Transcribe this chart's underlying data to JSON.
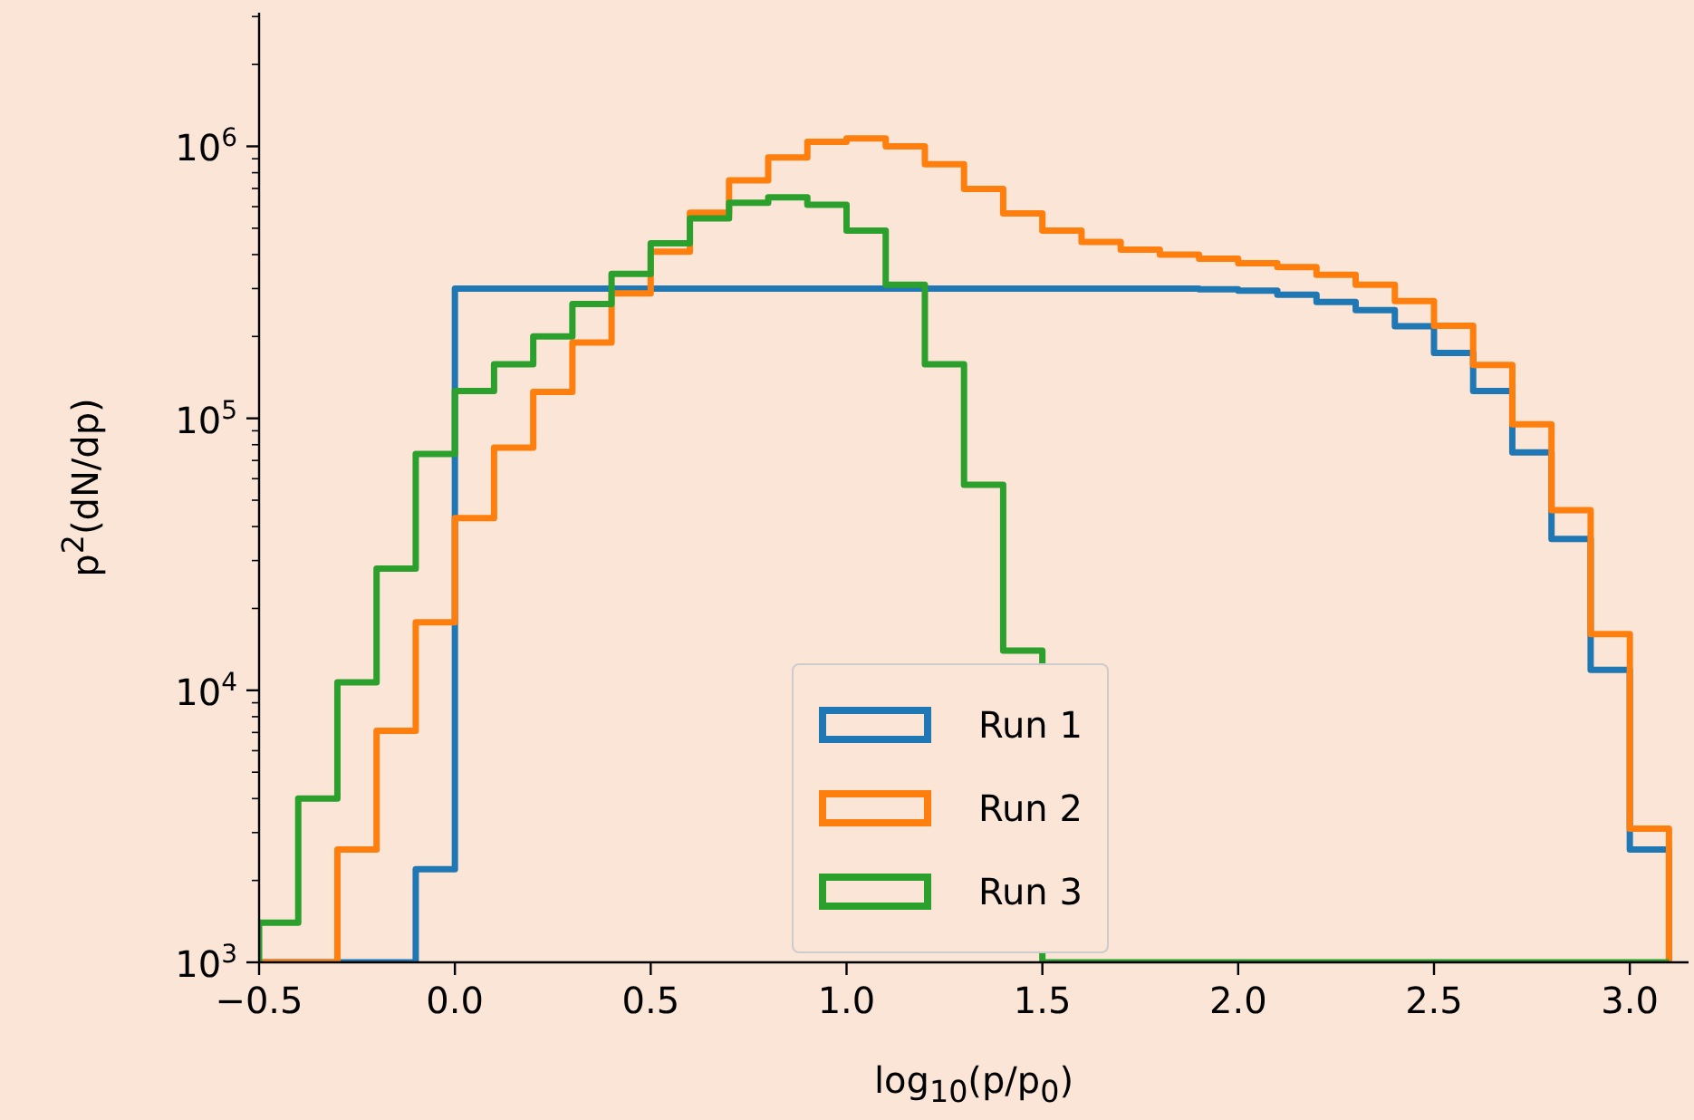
{
  "chart_data": {
    "type": "histogram",
    "xlabel": "log$_{10}$(p/p$_{0}$)",
    "ylabel": "p$^{2}$(dN/dp)",
    "log": "y",
    "legend": "bottom",
    "grid": false,
    "bins": [
      -0.5,
      -0.4,
      -0.3,
      -0.2,
      -0.1,
      0,
      0.1,
      0.2,
      0.3,
      0.4,
      0.5,
      0.6,
      0.7,
      0.8,
      0.9,
      1.0,
      1.1,
      1.2,
      1.3,
      1.4,
      1.5,
      1.6,
      1.7,
      1.8,
      1.9,
      2.0,
      2.1,
      2.2,
      2.3,
      2.4,
      2.5,
      2.6,
      2.7,
      2.8,
      2.9,
      3.0,
      3.1
    ],
    "series": [
      {
        "name": "Run 1",
        "color": "#1f77b4",
        "values": [
          null,
          null,
          null,
          null,
          2200,
          300000,
          300000,
          300000,
          300000,
          300000,
          300000,
          300000,
          300000,
          300000,
          300000,
          300000,
          300000,
          300000,
          300000,
          300000,
          300000,
          300000,
          300000,
          300000,
          298000,
          295000,
          285000,
          268000,
          250000,
          218000,
          174000,
          126000,
          75000,
          36000,
          11900,
          2600
        ]
      },
      {
        "name": "Run 2",
        "color": "#ff7f0e",
        "values": [
          null,
          null,
          2600,
          7100,
          17800,
          43000,
          78000,
          125000,
          190000,
          288000,
          410000,
          570000,
          750000,
          910000,
          1040000,
          1070000,
          1000000,
          860000,
          697000,
          567000,
          490000,
          445000,
          417000,
          400000,
          386000,
          372000,
          360000,
          337000,
          310000,
          270000,
          219000,
          157000,
          95000,
          46000,
          16100,
          3100
        ]
      },
      {
        "name": "Run 3",
        "color": "#2ca02c",
        "values": [
          1400,
          4000,
          10700,
          28000,
          74000,
          126000,
          158000,
          200000,
          263000,
          340000,
          440000,
          543000,
          620000,
          650000,
          610000,
          490000,
          310000,
          158000,
          57000,
          14000,
          null,
          null,
          null,
          null,
          null,
          null,
          null,
          null,
          null,
          null,
          null,
          null,
          null,
          null,
          null,
          null
        ]
      }
    ],
    "xlim": [
      -0.5,
      3.15
    ],
    "xticks": [
      {
        "value": -0.5,
        "label": "−0.5"
      },
      {
        "value": 0,
        "label": "0.0"
      },
      {
        "value": 0.5,
        "label": "0.5"
      },
      {
        "value": 1,
        "label": "1.0"
      },
      {
        "value": 1.5,
        "label": "1.5"
      },
      {
        "value": 2,
        "label": "2.0"
      },
      {
        "value": 2.5,
        "label": "2.5"
      },
      {
        "value": 3,
        "label": "3.0"
      }
    ],
    "ylim": [
      1000,
      3100000
    ],
    "yticks": [
      {
        "value": 1000,
        "label": "10$^{3}$"
      },
      {
        "value": 2000,
        "label": null
      },
      {
        "value": 3000,
        "label": null
      },
      {
        "value": 4000,
        "label": null
      },
      {
        "value": 5000,
        "label": null
      },
      {
        "value": 6000,
        "label": null
      },
      {
        "value": 7000,
        "label": null
      },
      {
        "value": 8000,
        "label": null
      },
      {
        "value": 9000,
        "label": null
      },
      {
        "value": 10000,
        "label": "10$^{4}$"
      },
      {
        "value": 20000,
        "label": null
      },
      {
        "value": 30000,
        "label": null
      },
      {
        "value": 40000,
        "label": null
      },
      {
        "value": 50000,
        "label": null
      },
      {
        "value": 60000,
        "label": null
      },
      {
        "value": 70000,
        "label": null
      },
      {
        "value": 80000,
        "label": null
      },
      {
        "value": 90000,
        "label": null
      },
      {
        "value": 100000,
        "label": "10$^{5}$"
      },
      {
        "value": 200000,
        "label": null
      },
      {
        "value": 300000,
        "label": null
      },
      {
        "value": 400000,
        "label": null
      },
      {
        "value": 500000,
        "label": null
      },
      {
        "value": 600000,
        "label": null
      },
      {
        "value": 700000,
        "label": null
      },
      {
        "value": 800000,
        "label": null
      },
      {
        "value": 900000,
        "label": null
      },
      {
        "value": 1000000,
        "label": "10$^{6}$"
      },
      {
        "value": 2000000,
        "label": null
      },
      {
        "value": 3000000,
        "label": null
      }
    ]
  }
}
